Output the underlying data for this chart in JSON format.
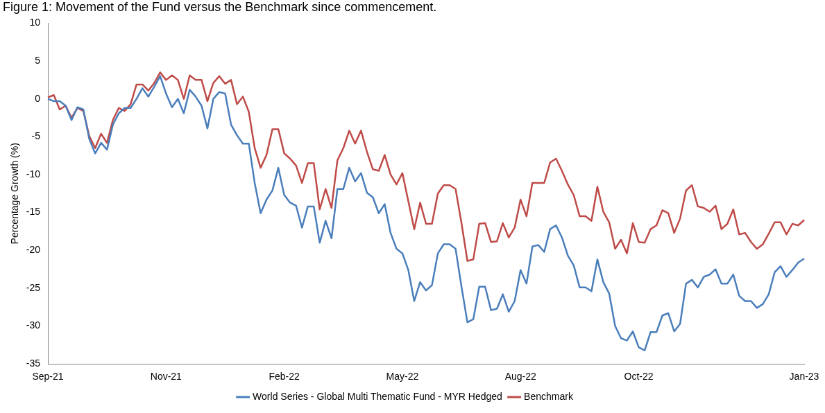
{
  "chart_data": {
    "type": "line",
    "title": "Figure 1: Movement of the Fund versus the Benchmark since commencement.",
    "ylabel": "Percentage Growth (%)",
    "categories": [
      "Sep-21",
      null,
      null,
      null,
      null,
      null,
      null,
      null,
      null,
      null,
      null,
      null,
      null,
      null,
      null,
      null,
      null,
      null,
      null,
      null,
      "Nov-21",
      null,
      null,
      null,
      null,
      null,
      null,
      null,
      null,
      null,
      null,
      null,
      null,
      null,
      null,
      null,
      null,
      null,
      null,
      null,
      "Feb-22",
      null,
      null,
      null,
      null,
      null,
      null,
      null,
      null,
      null,
      null,
      null,
      null,
      null,
      null,
      null,
      null,
      null,
      null,
      null,
      "May-22",
      null,
      null,
      null,
      null,
      null,
      null,
      null,
      null,
      null,
      null,
      null,
      null,
      null,
      null,
      null,
      null,
      null,
      null,
      null,
      "Aug-22",
      null,
      null,
      null,
      null,
      null,
      null,
      null,
      null,
      null,
      null,
      null,
      null,
      null,
      null,
      null,
      null,
      null,
      null,
      null,
      "Oct-22",
      null,
      null,
      null,
      null,
      null,
      null,
      null,
      null,
      null,
      null,
      null,
      null,
      null,
      null,
      null,
      null,
      null,
      null,
      null,
      null,
      null,
      null,
      null,
      null,
      null,
      null,
      null,
      "Jan-23"
    ],
    "ylim": [
      -35,
      10
    ],
    "yticks": [
      -35,
      -30,
      -25,
      -20,
      -15,
      -10,
      -5,
      0,
      5,
      10
    ],
    "grid": false,
    "legend": "bottom",
    "marker": "none",
    "line_style": "solid",
    "series": [
      {
        "name": "World Series - Global Multi Thematic Fund - MYR Hedged",
        "color": "#4a7ebb",
        "values": [
          0,
          -0.3,
          -0.3,
          -0.9,
          -2.8,
          -1.1,
          -1.4,
          -5.3,
          -7.2,
          -5.8,
          -6.7,
          -3.4,
          -1.9,
          -1.2,
          -1.2,
          0.0,
          1.4,
          0.3,
          1.6,
          3.0,
          0.7,
          -1.1,
          0.0,
          -1.9,
          1.2,
          0.3,
          -0.9,
          -3.9,
          0.0,
          0.9,
          0.7,
          -3.4,
          -4.8,
          -5.9,
          -5.9,
          -11.1,
          -15.1,
          -13.3,
          -12.1,
          -9.1,
          -12.7,
          -13.7,
          -14.1,
          -17.0,
          -14.2,
          -14.2,
          -19.0,
          -16.1,
          -18.4,
          -11.9,
          -11.9,
          -9.1,
          -10.9,
          -9.8,
          -12.4,
          -13.0,
          -15.1,
          -13.9,
          -17.7,
          -19.8,
          -20.4,
          -22.6,
          -26.7,
          -24.2,
          -25.3,
          -24.6,
          -20.4,
          -19.2,
          -19.2,
          -19.8,
          -24.8,
          -29.5,
          -29.1,
          -24.8,
          -24.8,
          -27.9,
          -27.7,
          -25.8,
          -28.1,
          -26.7,
          -22.6,
          -24.4,
          -19.5,
          -19.3,
          -20.2,
          -17.2,
          -16.7,
          -18.3,
          -20.7,
          -22.0,
          -24.9,
          -24.9,
          -25.4,
          -21.2,
          -24.2,
          -25.7,
          -30.0,
          -31.6,
          -31.9,
          -30.7,
          -32.8,
          -33.2,
          -30.8,
          -30.8,
          -28.6,
          -28.3,
          -30.7,
          -29.7,
          -24.4,
          -23.9,
          -24.9,
          -23.5,
          -23.2,
          -22.5,
          -24.4,
          -24.4,
          -23.2,
          -26.0,
          -26.7,
          -26.7,
          -27.6,
          -27.1,
          -25.8,
          -22.9,
          -22.1,
          -23.5,
          -22.6,
          -21.6,
          -21.1
        ]
      },
      {
        "name": "Benchmark",
        "color": "#be4b48",
        "values": [
          0.2,
          0.5,
          -1.4,
          -0.9,
          -2.5,
          -1.2,
          -1.6,
          -4.9,
          -6.5,
          -4.6,
          -5.8,
          -2.8,
          -1.2,
          -1.6,
          -0.7,
          1.9,
          1.9,
          1.1,
          2.1,
          3.5,
          2.5,
          3.1,
          2.5,
          0.0,
          3.1,
          2.5,
          2.5,
          -0.3,
          2.1,
          3.0,
          2.0,
          2.5,
          -0.7,
          0.3,
          -1.7,
          -6.5,
          -9.1,
          -7.4,
          -4.0,
          -4.0,
          -7.2,
          -7.9,
          -8.8,
          -11.1,
          -8.5,
          -8.5,
          -14.6,
          -11.9,
          -14.4,
          -8.1,
          -6.5,
          -4.2,
          -5.9,
          -4.2,
          -7.0,
          -9.3,
          -9.5,
          -7.4,
          -10.0,
          -11.3,
          -9.8,
          -13.5,
          -17.2,
          -13.7,
          -16.5,
          -16.5,
          -12.5,
          -11.4,
          -11.4,
          -11.9,
          -16.4,
          -21.4,
          -21.2,
          -16.5,
          -16.4,
          -18.9,
          -18.8,
          -16.4,
          -18.3,
          -17.0,
          -13.3,
          -15.5,
          -11.1,
          -11.1,
          -11.1,
          -8.4,
          -7.9,
          -9.5,
          -11.3,
          -12.7,
          -15.5,
          -15.5,
          -16.1,
          -11.6,
          -14.9,
          -16.3,
          -19.8,
          -18.6,
          -20.4,
          -16.4,
          -18.9,
          -19.0,
          -17.2,
          -16.7,
          -14.7,
          -15.1,
          -17.7,
          -15.8,
          -12.1,
          -11.4,
          -14.2,
          -14.4,
          -14.9,
          -14.1,
          -17.2,
          -16.5,
          -14.6,
          -17.9,
          -17.7,
          -18.9,
          -19.8,
          -19.2,
          -17.8,
          -16.3,
          -16.3,
          -17.9,
          -16.5,
          -16.7,
          -16.0
        ]
      }
    ]
  }
}
